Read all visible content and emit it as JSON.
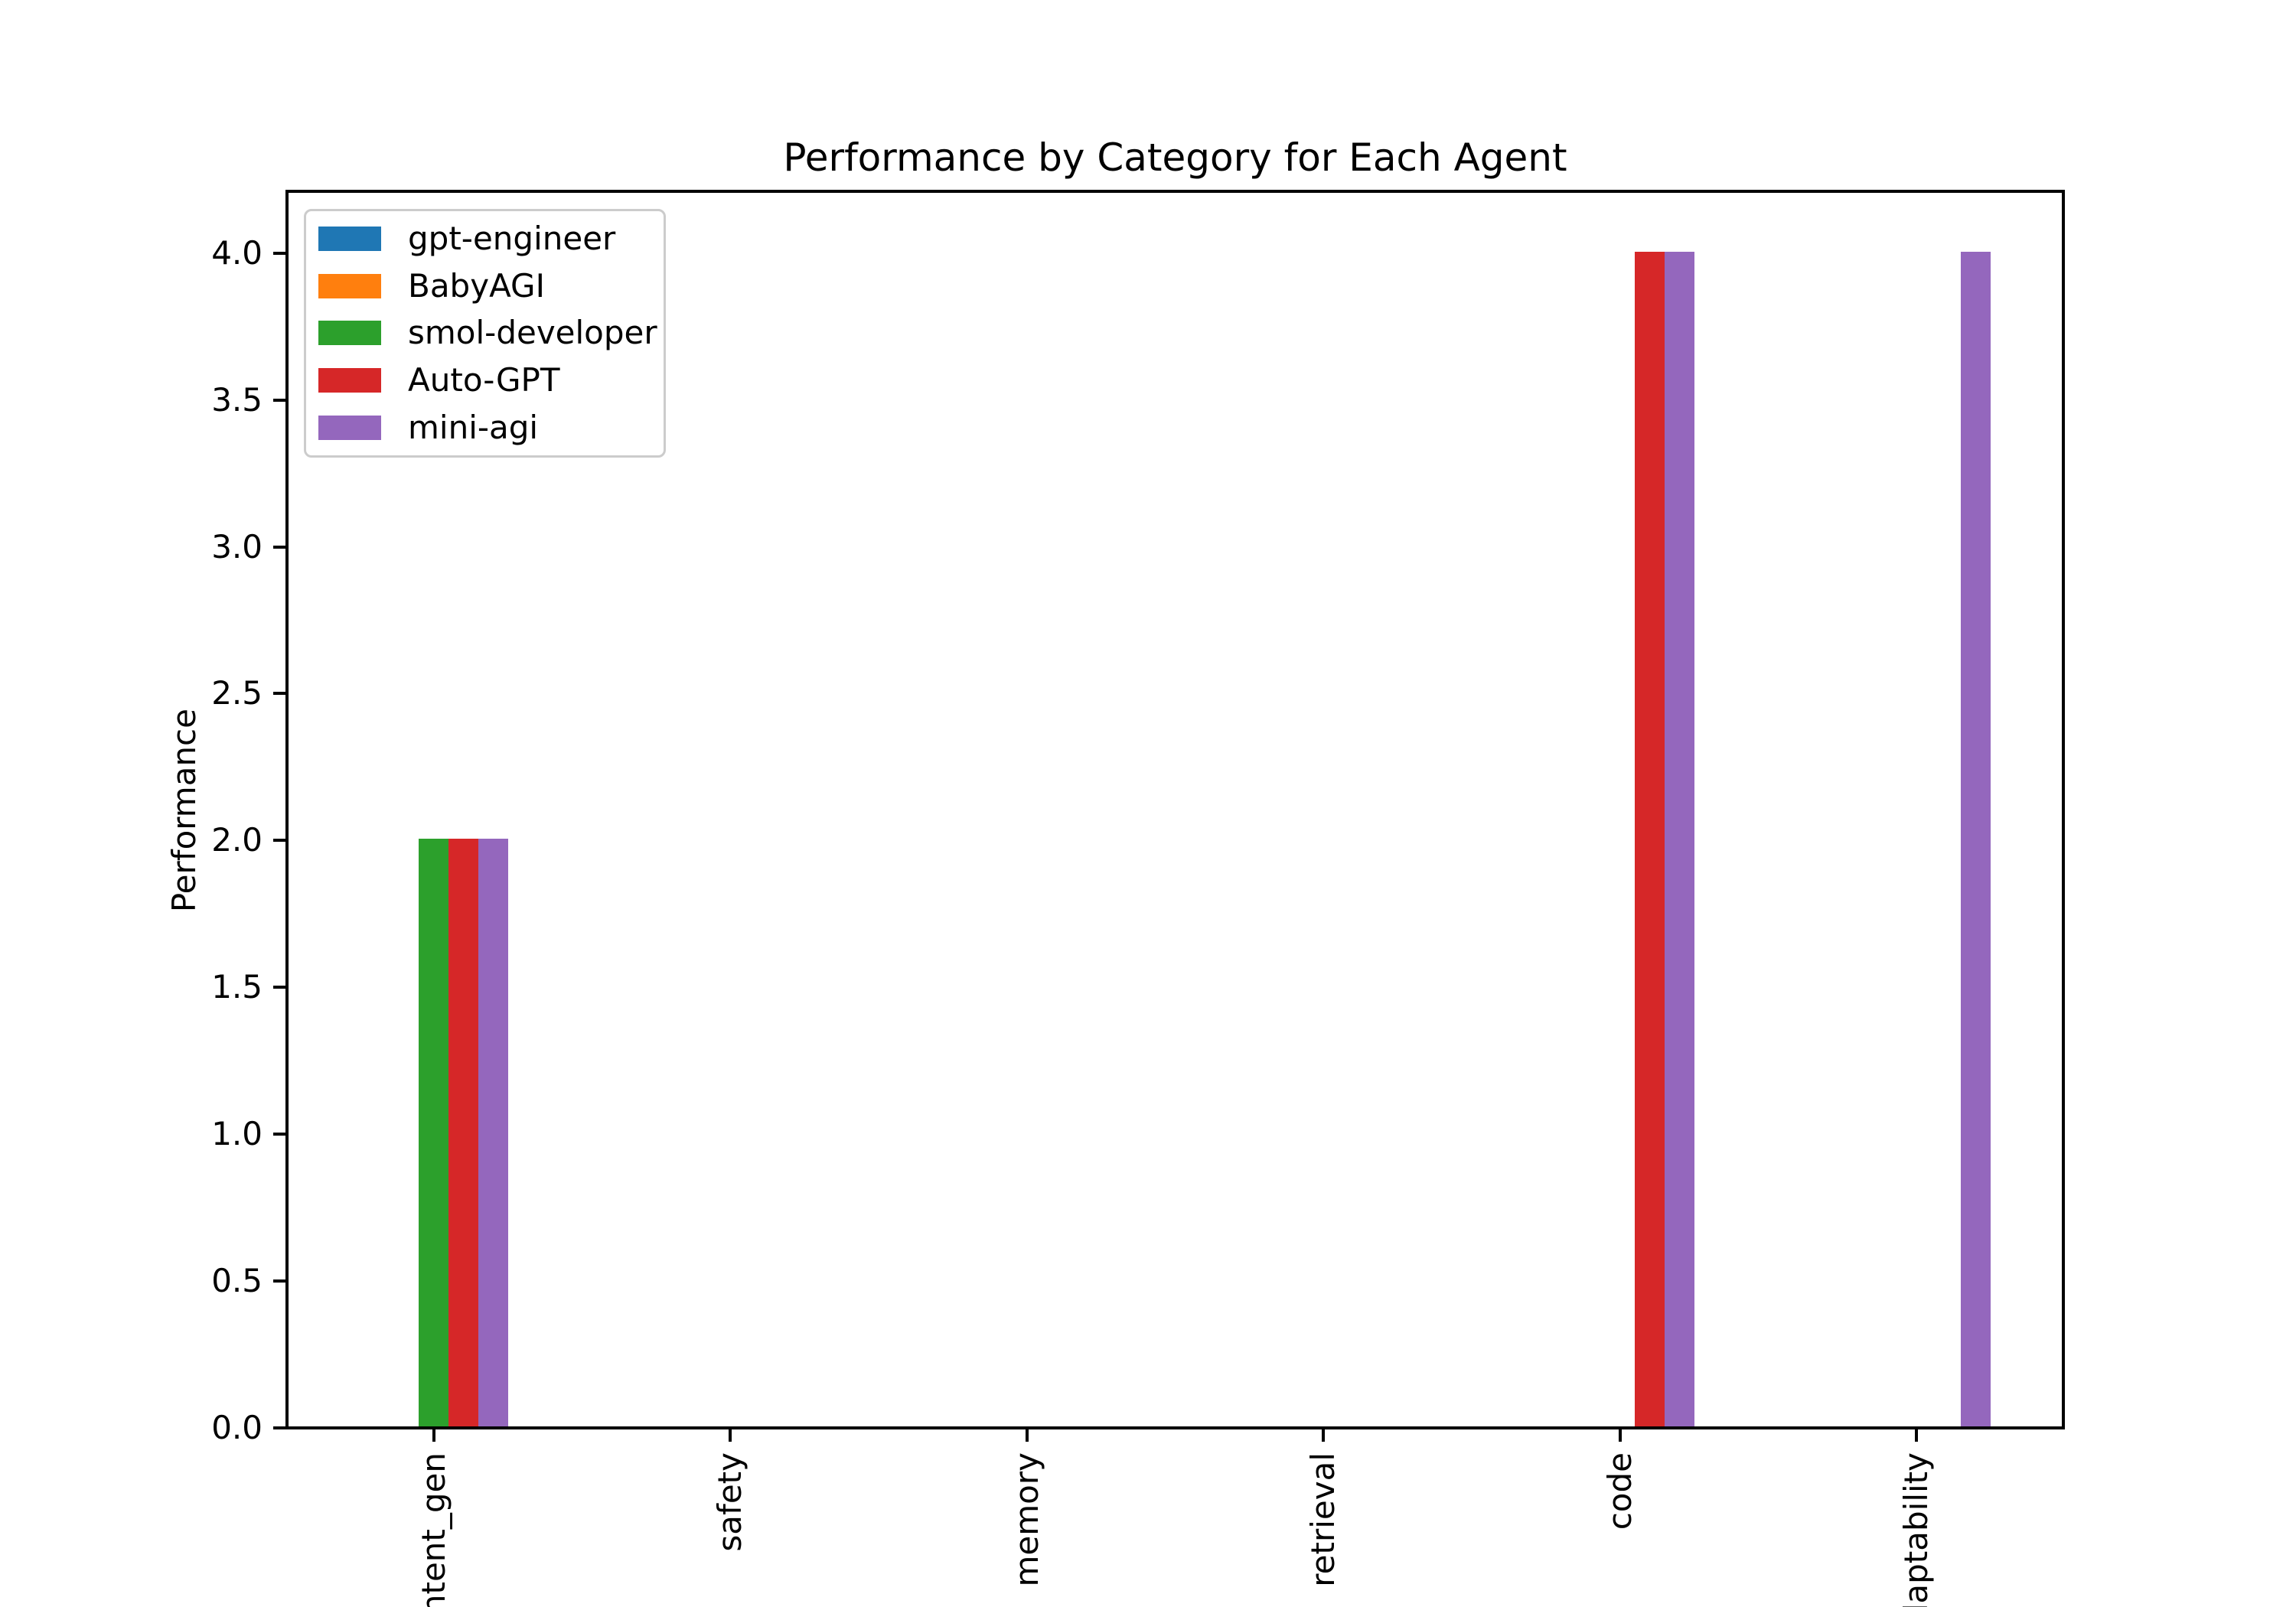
{
  "chart_data": {
    "type": "bar",
    "title": "Performance by Category for Each Agent",
    "xlabel": "",
    "ylabel": "Performance",
    "categories": [
      "content_gen",
      "safety",
      "memory",
      "retrieval",
      "code",
      "adaptability"
    ],
    "series": [
      {
        "name": "gpt-engineer",
        "color": "#1f77b4",
        "values": [
          0,
          0,
          0,
          0,
          0,
          0
        ]
      },
      {
        "name": "BabyAGI",
        "color": "#ff7f0e",
        "values": [
          0,
          0,
          0,
          0,
          0,
          0
        ]
      },
      {
        "name": "smol-developer",
        "color": "#2ca02c",
        "values": [
          2,
          0,
          0,
          0,
          0,
          0
        ]
      },
      {
        "name": "Auto-GPT",
        "color": "#d62728",
        "values": [
          2,
          0,
          0,
          0,
          4,
          0
        ]
      },
      {
        "name": "mini-agi",
        "color": "#9467bd",
        "values": [
          2,
          0,
          0,
          0,
          4,
          4
        ]
      }
    ],
    "ylim": [
      0,
      4.2
    ],
    "yticks": [
      "0.0",
      "0.5",
      "1.0",
      "1.5",
      "2.0",
      "2.5",
      "3.0",
      "3.5",
      "4.0"
    ],
    "legend": {
      "position": "upper left",
      "entries": [
        "gpt-engineer",
        "BabyAGI",
        "smol-developer",
        "Auto-GPT",
        "mini-agi"
      ]
    },
    "grid": false,
    "bar_width_fraction": 0.1,
    "x_tick_rotation_deg": 90,
    "axis_color": "#000000",
    "legend_border_color": "#cccccc"
  }
}
